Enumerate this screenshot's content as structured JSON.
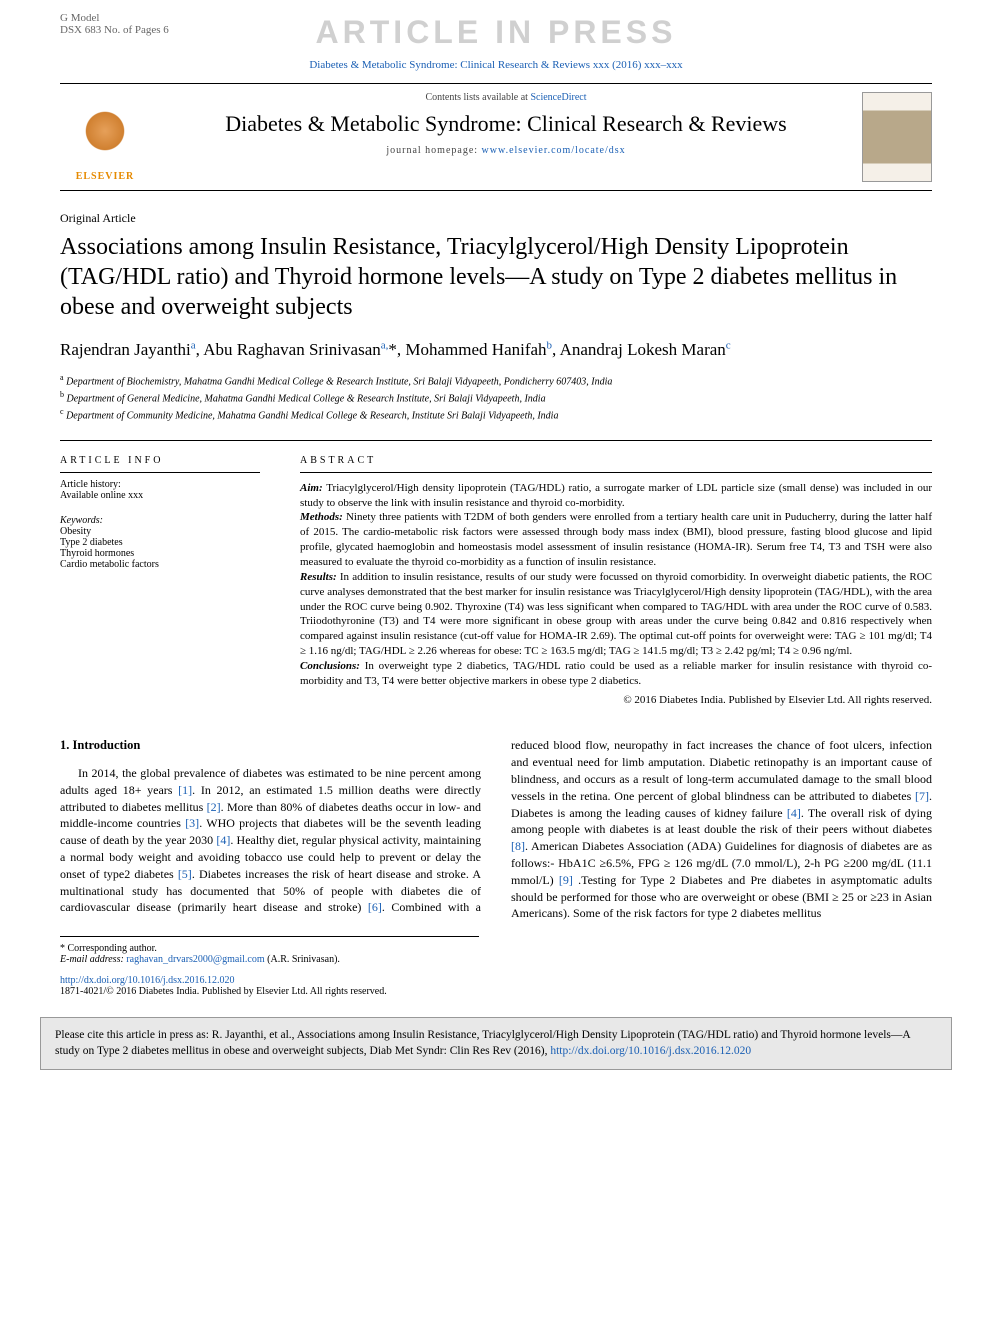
{
  "header": {
    "model_line": "G Model",
    "article_id": "DSX 683 No. of Pages 6",
    "watermark": "ARTICLE IN PRESS",
    "journal_ref": "Diabetes & Metabolic Syndrome: Clinical Research & Reviews xxx (2016) xxx–xxx"
  },
  "masthead": {
    "publisher": "ELSEVIER",
    "contents_prefix": "Contents lists available at ",
    "contents_link": "ScienceDirect",
    "journal_name": "Diabetes & Metabolic Syndrome: Clinical Research & Reviews",
    "homepage_prefix": "journal homepage: ",
    "homepage_url": "www.elsevier.com/locate/dsx"
  },
  "article": {
    "type": "Original Article",
    "title": "Associations among Insulin Resistance, Triacylglycerol/High Density Lipoprotein (TAG/HDL ratio) and Thyroid hormone levels—A study on Type 2 diabetes mellitus in obese and overweight subjects",
    "authors_html": "Rajendran Jayanthi<sup class='aff-link'>a</sup>, Abu Raghavan Srinivasan<sup class='aff-link'>a,</sup>*, Mohammed Hanifah<sup class='aff-link'>b</sup>, Anandraj Lokesh Maran<sup class='aff-link'>c</sup>",
    "affiliations": [
      "Department of Biochemistry, Mahatma Gandhi Medical College & Research Institute, Sri Balaji Vidyapeeth, Pondicherry 607403, India",
      "Department of General Medicine, Mahatma Gandhi Medical College & Research Institute, Sri Balaji Vidyapeeth, India",
      "Department of Community Medicine, Mahatma Gandhi Medical College & Research, Institute Sri Balaji Vidyapeeth, India"
    ],
    "aff_letters": [
      "a",
      "b",
      "c"
    ]
  },
  "info": {
    "heading": "ARTICLE INFO",
    "history_label": "Article history:",
    "history_value": "Available online xxx",
    "keywords_label": "Keywords:",
    "keywords": [
      "Obesity",
      "Type 2 diabetes",
      "Thyroid hormones",
      "Cardio metabolic factors"
    ]
  },
  "abstract": {
    "heading": "ABSTRACT",
    "aim_label": "Aim:",
    "aim": " Triacylglycerol/High density lipoprotein (TAG/HDL) ratio, a surrogate marker of LDL particle size (small dense) was included in our study to observe the link with insulin resistance and thyroid co-morbidity.",
    "methods_label": "Methods:",
    "methods": " Ninety three patients with T2DM of both genders were enrolled from a tertiary health care unit in Puducherry, during the latter half of 2015. The cardio-metabolic risk factors were assessed through body mass index (BMI), blood pressure, fasting blood glucose and lipid profile, glycated haemoglobin and homeostasis model assessment of insulin resistance (HOMA-IR). Serum free T4, T3 and TSH were also measured to evaluate the thyroid co-morbidity as a function of insulin resistance.",
    "results_label": "Results:",
    "results": " In addition to insulin resistance, results of our study were focussed on thyroid comorbidity. In overweight diabetic patients, the ROC curve analyses demonstrated that the best marker for insulin resistance was Triacylglycerol/High density lipoprotein (TAG/HDL), with the area under the ROC curve being 0.902. Thyroxine (T4) was less significant when compared to TAG/HDL with area under the ROC curve of 0.583. Triiodothyronine (T3) and T4 were more significant in obese group with areas under the curve being 0.842 and 0.816 respectively when compared against insulin resistance (cut-off value for HOMA-IR 2.69). The optimal cut-off points for overweight were: TAG ≥ 101 mg/dl; T4 ≥ 1.16 ng/dl; TAG/HDL ≥ 2.26 whereas for obese: TC ≥ 163.5 mg/dl; TAG ≥ 141.5 mg/dl; T3 ≥ 2.42 pg/ml; T4 ≥ 0.96 ng/ml.",
    "conclusions_label": "Conclusions:",
    "conclusions": " In overweight type 2 diabetics, TAG/HDL ratio could be used as a reliable marker for insulin resistance with thyroid co-morbidity and T3, T4 were better objective markers in obese type 2 diabetics.",
    "copyright": "© 2016 Diabetes India. Published by Elsevier Ltd. All rights reserved."
  },
  "body": {
    "section_heading": "1. Introduction",
    "para1_a": "In 2014, the global prevalence of diabetes was estimated to be nine percent among adults aged 18+ years ",
    "ref1": "[1]",
    "para1_b": ". In 2012, an estimated 1.5 million deaths were directly attributed to diabetes mellitus ",
    "ref2": "[2]",
    "para1_c": ". More than 80% of diabetes deaths occur in low- and middle-income countries ",
    "ref3": "[3]",
    "para1_d": ". WHO projects that diabetes will be the seventh leading cause of death by the year 2030 ",
    "ref4": "[4]",
    "para1_e": ". Healthy diet, regular physical activity, maintaining a normal body weight and avoiding tobacco use could help to prevent or delay the onset of type2 diabetes ",
    "ref5": "[5]",
    "para1_f": ". Diabetes increases the risk of heart disease and stroke. A multinational study has documented that 50% of people with diabetes die of cardiovascular disease (primarily heart disease and stroke) ",
    "ref6": "[6]",
    "para1_g": ". Combined with a reduced blood flow, neuropathy in fact increases the chance of foot ulcers, infection and eventual need for limb amputation. Diabetic retinopathy is an important cause of blindness, and occurs as a result of long-term accumulated damage to the small blood vessels in the retina. One percent of global blindness can be attributed to diabetes ",
    "ref7": "[7]",
    "para1_h": ". Diabetes is among the leading causes of kidney failure ",
    "ref4b": "[4]",
    "para1_i": ". The overall risk of dying among people with diabetes is at least double the risk of their peers without diabetes ",
    "ref8": "[8]",
    "para1_j": ". American Diabetes Association (ADA) Guidelines for diagnosis of diabetes are as follows:- HbA1C ≥6.5%, FPG ≥ 126 mg/dL (7.0 mmol/L), 2-h PG ≥200 mg/dL (11.1 mmol/L) ",
    "ref9": "[9]",
    "para1_k": " .Testing for Type 2 Diabetes and Pre diabetes in asymptomatic adults should be performed for those who are overweight or obese (BMI ≥ 25 or ≥23 in Asian Americans). Some of the risk factors for type 2 diabetes mellitus"
  },
  "footnotes": {
    "corr_label": "* Corresponding author.",
    "email_label": "E-mail address: ",
    "email": "raghavan_drvars2000@gmail.com",
    "email_attribution": " (A.R. Srinivasan)."
  },
  "doi": {
    "url": "http://dx.doi.org/10.1016/j.dsx.2016.12.020",
    "issn_line": "1871-4021/© 2016 Diabetes India. Published by Elsevier Ltd. All rights reserved."
  },
  "cite_box": {
    "text": "Please cite this article in press as: R. Jayanthi, et al., Associations among Insulin Resistance, Triacylglycerol/High Density Lipoprotein (TAG/HDL ratio) and Thyroid hormone levels—A study on Type 2 diabetes mellitus in obese and overweight subjects, Diab Met Syndr: Clin Res Rev (2016), ",
    "url": "http://dx.doi.org/10.1016/j.dsx.2016.12.020"
  }
}
